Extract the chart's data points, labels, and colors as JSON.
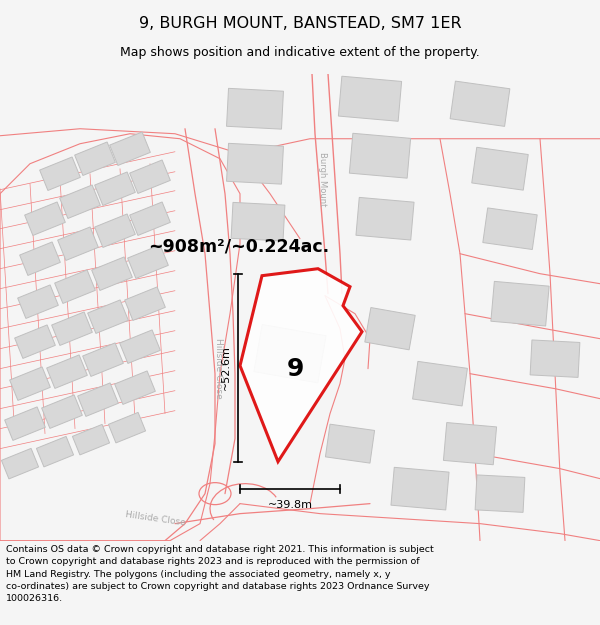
{
  "title": "9, BURGH MOUNT, BANSTEAD, SM7 1ER",
  "subtitle": "Map shows position and indicative extent of the property.",
  "area_label": "~908m²/~0.224ac.",
  "dim_vertical": "~52.6m",
  "dim_horizontal": "~39.8m",
  "property_number": "9",
  "footer_text": "Contains OS data © Crown copyright and database right 2021. This information is subject\nto Crown copyright and database rights 2023 and is reproduced with the permission of\nHM Land Registry. The polygons (including the associated geometry, namely x, y\nco-ordinates) are subject to Crown copyright and database rights 2023 Ordnance Survey\n100026316.",
  "bg_color": "#f5f5f5",
  "map_bg": "#ffffff",
  "outline_color": "#f08080",
  "highlight_color": "#dd0000",
  "building_fill": "#d8d8d8",
  "building_edge": "#c0c0c0",
  "road_outline": "#cccccc"
}
